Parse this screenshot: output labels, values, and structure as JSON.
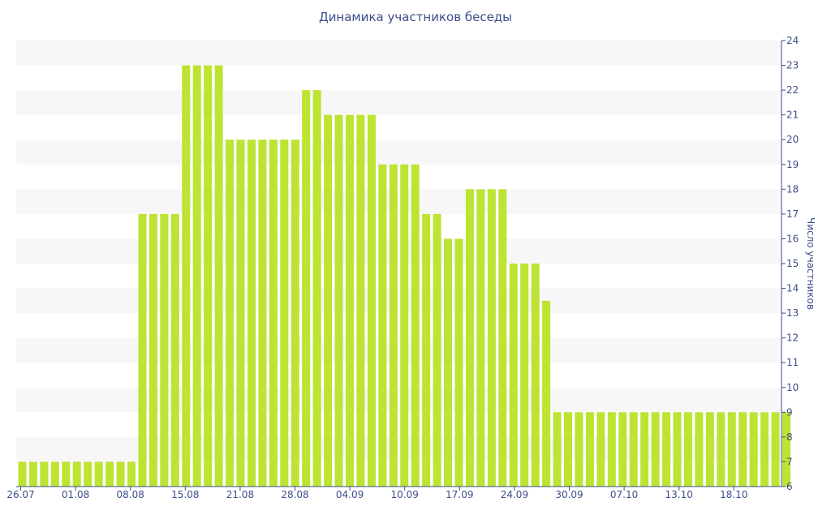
{
  "chart_data": {
    "type": "bar",
    "title": "Динамика участников беседы",
    "xlabel": "",
    "ylabel": "Число участников",
    "ylim": [
      6,
      24
    ],
    "yticks": [
      6,
      7,
      8,
      9,
      10,
      11,
      12,
      13,
      14,
      15,
      16,
      17,
      18,
      19,
      20,
      21,
      22,
      23,
      24
    ],
    "xtick_labels": [
      "26.07",
      "01.08",
      "08.08",
      "15.08",
      "21.08",
      "28.08",
      "04.09",
      "10.09",
      "17.09",
      "24.09",
      "30.09",
      "07.10",
      "13.10",
      "18.10"
    ],
    "values": [
      7,
      7,
      7,
      7,
      7,
      7,
      7,
      7,
      7,
      7,
      7,
      17,
      17,
      17,
      17,
      23,
      23,
      23,
      23,
      20,
      20,
      20,
      20,
      20,
      20,
      20,
      22,
      22,
      21,
      21,
      21,
      21,
      21,
      19,
      19,
      19,
      19,
      17,
      17,
      16,
      16,
      18,
      18,
      18,
      18,
      15,
      15,
      15,
      13.5,
      9,
      9,
      9,
      9,
      9,
      9,
      9,
      9,
      9,
      9,
      9,
      9,
      9,
      9,
      9,
      9,
      9,
      9,
      9,
      9,
      9,
      9
    ],
    "bar_color": "#bde333",
    "band_color": "#f7f7f7",
    "text_color": "#3d4e8a",
    "grid": "alternating horizontal bands",
    "y_axis_side": "right"
  }
}
